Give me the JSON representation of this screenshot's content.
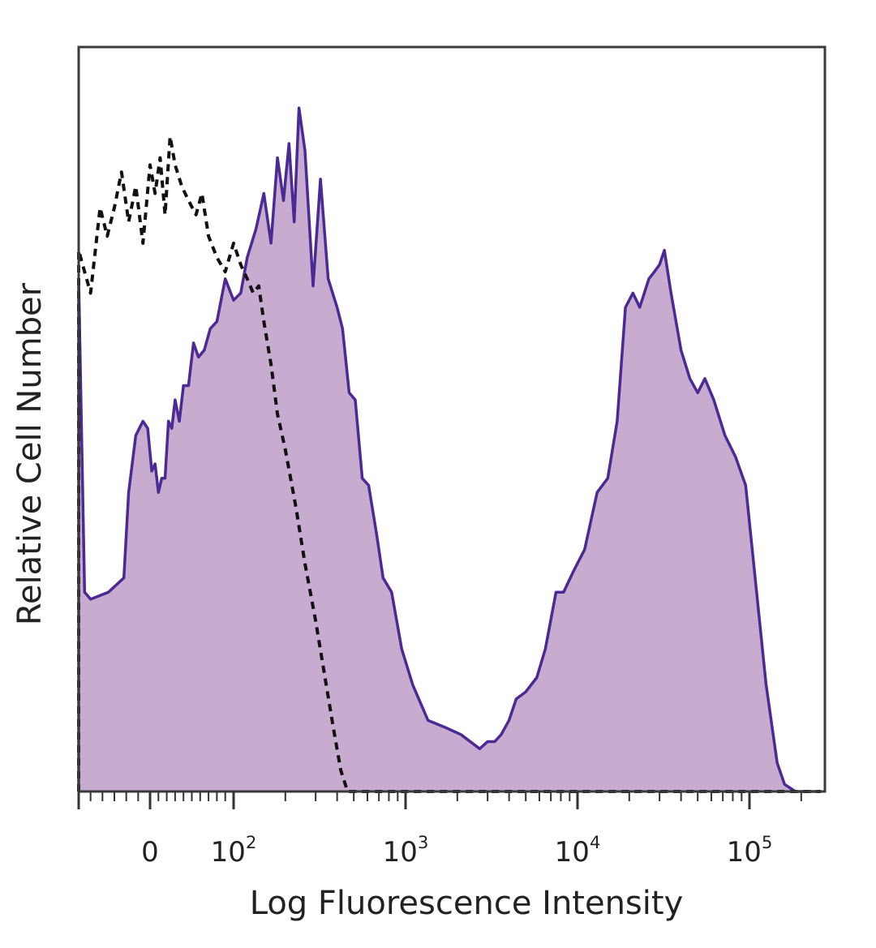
{
  "chart_data": {
    "type": "area",
    "title": "",
    "xlabel": "Log Fluorescence Intensity",
    "ylabel": "Relative Cell Number",
    "x_scale": "biexponential (linear near 0, log above 100)",
    "xlim": [
      -60,
      260000
    ],
    "ylim": [
      0,
      100
    ],
    "grid": false,
    "legend": "none",
    "x_ticks": [
      {
        "value": 0,
        "base": "0",
        "exp": ""
      },
      {
        "value": 100,
        "base": "10",
        "exp": "2"
      },
      {
        "value": 1000,
        "base": "10",
        "exp": "3"
      },
      {
        "value": 10000,
        "base": "10",
        "exp": "4"
      },
      {
        "value": 100000,
        "base": "10",
        "exp": "5"
      }
    ],
    "colors": {
      "stained_fill": "#c7acd0",
      "stained_line": "#4b2a95",
      "control_line": "#111111",
      "axis": "#333333"
    },
    "series": [
      {
        "style": "filled solid purple",
        "points": [
          [
            -60,
            0
          ],
          [
            -60,
            72
          ],
          [
            -55,
            28
          ],
          [
            -50,
            27
          ],
          [
            -35,
            28
          ],
          [
            -22,
            30
          ],
          [
            -18,
            42
          ],
          [
            -12,
            50
          ],
          [
            -6,
            52
          ],
          [
            -2,
            51
          ],
          [
            2,
            45
          ],
          [
            6,
            46
          ],
          [
            10,
            42
          ],
          [
            14,
            44
          ],
          [
            18,
            44
          ],
          [
            22,
            52
          ],
          [
            26,
            51
          ],
          [
            30,
            55
          ],
          [
            35,
            52
          ],
          [
            40,
            57
          ],
          [
            46,
            57
          ],
          [
            52,
            63
          ],
          [
            58,
            61
          ],
          [
            65,
            62
          ],
          [
            72,
            65
          ],
          [
            80,
            66
          ],
          [
            90,
            72
          ],
          [
            100,
            69
          ],
          [
            110,
            70
          ],
          [
            120,
            75
          ],
          [
            135,
            79
          ],
          [
            150,
            84
          ],
          [
            165,
            77
          ],
          [
            180,
            89
          ],
          [
            195,
            83
          ],
          [
            210,
            91
          ],
          [
            225,
            80
          ],
          [
            240,
            96
          ],
          [
            260,
            90
          ],
          [
            290,
            71
          ],
          [
            320,
            86
          ],
          [
            355,
            72
          ],
          [
            400,
            68
          ],
          [
            430,
            65
          ],
          [
            470,
            56
          ],
          [
            510,
            55
          ],
          [
            560,
            44
          ],
          [
            610,
            43
          ],
          [
            680,
            36
          ],
          [
            740,
            30
          ],
          [
            830,
            28
          ],
          [
            950,
            20
          ],
          [
            1100,
            15
          ],
          [
            1350,
            10
          ],
          [
            1700,
            9
          ],
          [
            2100,
            8
          ],
          [
            2700,
            6
          ],
          [
            3000,
            7
          ],
          [
            3300,
            7
          ],
          [
            3600,
            8
          ],
          [
            4000,
            10
          ],
          [
            4400,
            13
          ],
          [
            5000,
            14
          ],
          [
            5800,
            16
          ],
          [
            6500,
            20
          ],
          [
            7500,
            28
          ],
          [
            8300,
            28
          ],
          [
            9500,
            31
          ],
          [
            11000,
            34
          ],
          [
            13000,
            42
          ],
          [
            15000,
            44
          ],
          [
            17000,
            52
          ],
          [
            19000,
            68
          ],
          [
            21000,
            70
          ],
          [
            23000,
            68
          ],
          [
            26000,
            72
          ],
          [
            28000,
            73
          ],
          [
            30000,
            74
          ],
          [
            32000,
            76
          ],
          [
            35000,
            70
          ],
          [
            40000,
            62
          ],
          [
            45000,
            58
          ],
          [
            50000,
            56
          ],
          [
            55000,
            58
          ],
          [
            62000,
            55
          ],
          [
            72000,
            50
          ],
          [
            83000,
            47
          ],
          [
            95000,
            43
          ],
          [
            110000,
            28
          ],
          [
            125000,
            15
          ],
          [
            145000,
            4
          ],
          [
            160000,
            1
          ],
          [
            185000,
            0
          ],
          [
            215000,
            0
          ],
          [
            260000,
            0
          ]
        ]
      },
      {
        "style": "dashed black outline",
        "points": [
          [
            -60,
            0
          ],
          [
            -60,
            76
          ],
          [
            -55,
            73
          ],
          [
            -50,
            70
          ],
          [
            -42,
            82
          ],
          [
            -36,
            78
          ],
          [
            -30,
            82
          ],
          [
            -24,
            87
          ],
          [
            -18,
            80
          ],
          [
            -12,
            85
          ],
          [
            -6,
            77
          ],
          [
            0,
            88
          ],
          [
            6,
            84
          ],
          [
            12,
            89
          ],
          [
            18,
            81
          ],
          [
            24,
            92
          ],
          [
            30,
            88
          ],
          [
            38,
            85
          ],
          [
            46,
            83
          ],
          [
            55,
            81
          ],
          [
            62,
            84
          ],
          [
            70,
            78
          ],
          [
            80,
            75
          ],
          [
            90,
            73
          ],
          [
            100,
            77
          ],
          [
            110,
            74
          ],
          [
            120,
            72
          ],
          [
            130,
            70
          ],
          [
            140,
            71
          ],
          [
            150,
            66
          ],
          [
            165,
            60
          ],
          [
            180,
            53
          ],
          [
            200,
            48
          ],
          [
            230,
            40
          ],
          [
            260,
            32
          ],
          [
            300,
            24
          ],
          [
            340,
            16
          ],
          [
            380,
            9
          ],
          [
            420,
            3
          ],
          [
            460,
            0
          ],
          [
            500,
            0
          ],
          [
            1000,
            0
          ],
          [
            10000,
            0
          ],
          [
            100000,
            0
          ],
          [
            260000,
            0
          ]
        ]
      }
    ]
  }
}
